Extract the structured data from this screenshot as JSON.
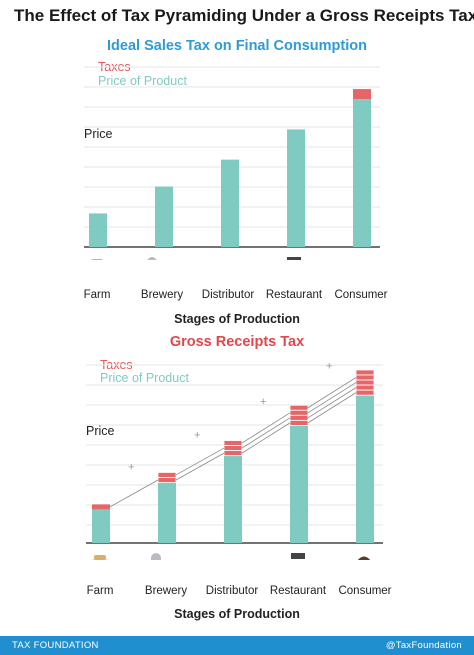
{
  "title": "The Effect of Tax Pyramiding Under a Gross Receipts Tax",
  "colors": {
    "price": "#7fcbc2",
    "tax": "#e56668",
    "title_blue": "#2e9bd6",
    "title_red": "#e1474b",
    "footer": "#1f8fd0"
  },
  "icons": [
    "wheat-sack-icon",
    "brewery-icon",
    "transport-truck-icon",
    "bar-storefront-icon",
    "consumer-person-icon"
  ],
  "chart_data": [
    {
      "type": "bar",
      "title": "Ideal Sales Tax on Final Consumption",
      "legend": [
        "Taxes",
        "Price of Product"
      ],
      "ylabel": "Price",
      "xlabel": "Stages of Production",
      "categories": [
        "Farm",
        "Brewery",
        "Distributor",
        "Restaurant",
        "Consumer"
      ],
      "series": [
        {
          "name": "Price of Product",
          "values": [
            1,
            1.8,
            2.6,
            3.5,
            4.4
          ]
        },
        {
          "name": "Taxes",
          "values": [
            0,
            0,
            0,
            0,
            0.3
          ]
        }
      ],
      "ylim": [
        0,
        5
      ],
      "grid": true
    },
    {
      "type": "bar",
      "title": "Gross Receipts Tax",
      "legend": [
        "Taxes",
        "Price of Product"
      ],
      "ylabel": "Price",
      "xlabel": "Stages of Production",
      "categories": [
        "Farm",
        "Brewery",
        "Distributor",
        "Restaurant",
        "Consumer"
      ],
      "series": [
        {
          "name": "Price of Product",
          "values": [
            1,
            1.8,
            2.6,
            3.5,
            4.4
          ]
        },
        {
          "name": "Taxes",
          "values": [
            0.15,
            0.3,
            0.45,
            0.6,
            0.75
          ],
          "tax_layers": [
            1,
            2,
            3,
            4,
            5
          ]
        }
      ],
      "annotations": [
        "+",
        "+",
        "+",
        "+"
      ],
      "ylim": [
        0,
        5.5
      ],
      "grid": true
    }
  ],
  "footer": {
    "left": "TAX FOUNDATION",
    "right": "@TaxFoundation"
  }
}
